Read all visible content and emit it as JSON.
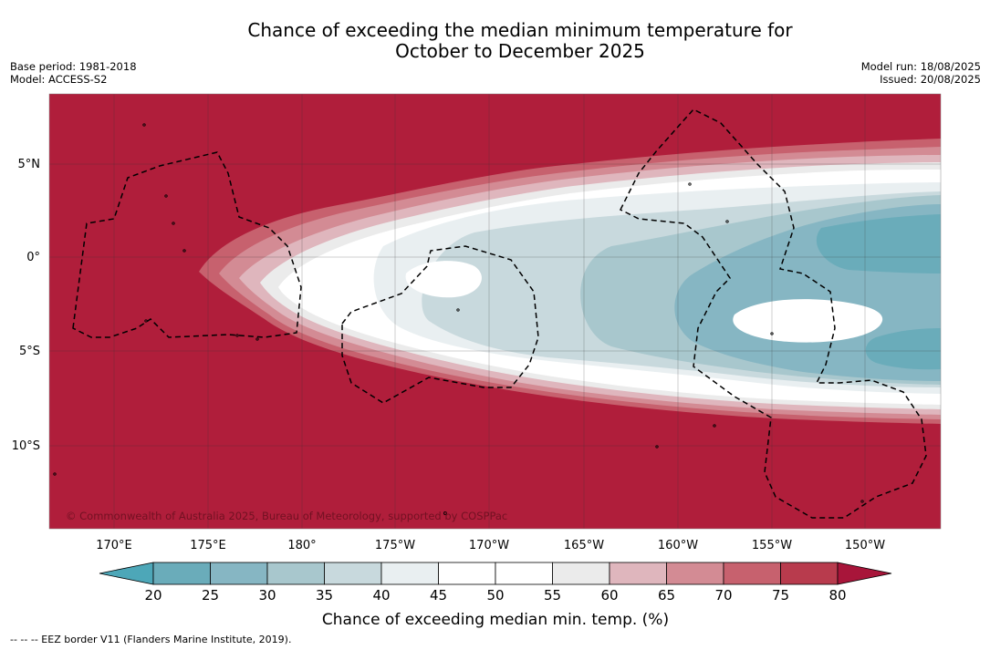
{
  "title": {
    "line1": "Chance of exceeding the median minimum temperature for",
    "line2": "October to December 2025"
  },
  "meta_left": {
    "base_period": "Base period: 1981-2018",
    "model": "Model: ACCESS-S2"
  },
  "meta_right": {
    "model_run": "Model run: 18/08/2025",
    "issued": "Issued: 20/08/2025"
  },
  "map": {
    "lon_labels": [
      "170°E",
      "175°E",
      "180°",
      "175°W",
      "170°W",
      "165°W",
      "160°W",
      "155°W",
      "150°W"
    ],
    "lat_labels": [
      "5°N",
      "0°",
      "5°S",
      "10°S"
    ],
    "copyright": "© Commonwealth of Australia 2025, Bureau of Meteorology, supported by COSPPac",
    "background_color": "#b01e3b"
  },
  "colorbar": {
    "ticks": [
      "20",
      "25",
      "30",
      "35",
      "40",
      "45",
      "50",
      "55",
      "60",
      "65",
      "70",
      "75",
      "80"
    ],
    "colors": [
      "#4da7b8",
      "#6aacba",
      "#86b6c3",
      "#a8c7cd",
      "#c8d9dd",
      "#e9eff1",
      "#ffffff",
      "#ffffff",
      "#ebebeb",
      "#dfb6bd",
      "#d38b94",
      "#c7616e",
      "#b83b4d",
      "#a8153a"
    ],
    "label": "Chance of exceeding median min. temp. (%)"
  },
  "footer": "-- -- -- EEZ border V11 (Flanders Marine Institute, 2019)."
}
